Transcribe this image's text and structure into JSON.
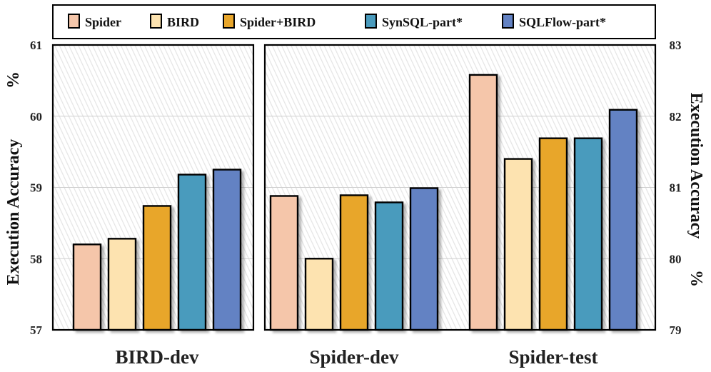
{
  "chart_data": [
    {
      "type": "bar",
      "panel": "left",
      "categories": [
        "BIRD-dev"
      ],
      "series": [
        {
          "name": "Spider",
          "values": [
            58.2
          ]
        },
        {
          "name": "BIRD",
          "values": [
            58.28
          ]
        },
        {
          "name": "Spider+BIRD",
          "values": [
            58.74
          ]
        },
        {
          "name": "SynSQL-part*",
          "values": [
            59.18
          ]
        },
        {
          "name": "SQLFlow-part*",
          "values": [
            59.25
          ]
        }
      ],
      "ylabel": "Execution Accuracy %",
      "ylim": [
        57,
        61
      ],
      "yticks": [
        "57",
        "58",
        "59",
        "60",
        "61"
      ],
      "grid": true
    },
    {
      "type": "bar",
      "panel": "right",
      "categories": [
        "Spider-dev",
        "Spider-test"
      ],
      "series": [
        {
          "name": "Spider",
          "values": [
            80.88,
            82.58
          ]
        },
        {
          "name": "BIRD",
          "values": [
            80.0,
            81.4
          ]
        },
        {
          "name": "Spider+BIRD",
          "values": [
            80.89,
            81.69
          ]
        },
        {
          "name": "SynSQL-part*",
          "values": [
            80.79,
            81.69
          ]
        },
        {
          "name": "SQLFlow-part*",
          "values": [
            80.99,
            82.09
          ]
        }
      ],
      "ylabel": "Execution Accuracy %",
      "ylim": [
        79,
        83
      ],
      "yticks": [
        "79",
        "80",
        "81",
        "82",
        "83"
      ],
      "grid": true
    }
  ],
  "legend": {
    "placement": "top",
    "items": [
      {
        "label": "Spider",
        "color": "#F5C6AA"
      },
      {
        "label": "BIRD",
        "color": "#FDE3B0"
      },
      {
        "label": "Spider+BIRD",
        "color": "#E8A62B"
      },
      {
        "label": "SynSQL-part*",
        "color": "#4A9BBD"
      },
      {
        "label": "SQLFlow-part*",
        "color": "#6382C3"
      }
    ]
  },
  "labels": {
    "left_ylabel_main": "Execution Accuracy",
    "right_ylabel_main": "Execution Accuracy",
    "ylabel_unit": "%"
  }
}
